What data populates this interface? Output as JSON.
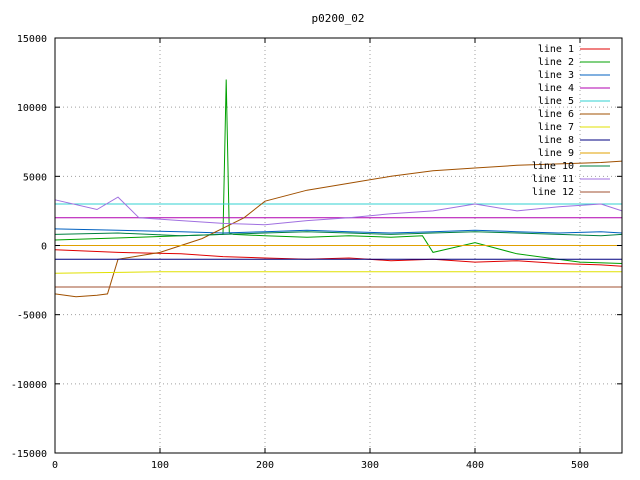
{
  "chart_data": {
    "type": "line",
    "title": "p0200_02",
    "xlabel": "",
    "ylabel": "",
    "xlim": [
      0,
      540
    ],
    "ylim": [
      -15000,
      15000
    ],
    "grid": true,
    "legend_position": "top-right",
    "x_ticks": [
      0,
      100,
      200,
      300,
      400,
      500
    ],
    "y_ticks": [
      -15000,
      -10000,
      -5000,
      0,
      5000,
      10000,
      15000
    ],
    "series": [
      {
        "name": "line 1",
        "color": "#e00000",
        "x": [
          0,
          60,
          120,
          160,
          200,
          240,
          280,
          320,
          360,
          400,
          440,
          480,
          520,
          540
        ],
        "y": [
          -300,
          -500,
          -600,
          -800,
          -900,
          -1000,
          -900,
          -1100,
          -1000,
          -1200,
          -1100,
          -1300,
          -1400,
          -1500
        ]
      },
      {
        "name": "line 2",
        "color": "#00a000",
        "x": [
          0,
          40,
          80,
          120,
          160,
          163,
          166,
          170,
          200,
          240,
          280,
          320,
          350,
          360,
          400,
          440,
          470,
          500,
          540
        ],
        "y": [
          400,
          500,
          600,
          700,
          800,
          12000,
          900,
          800,
          700,
          600,
          700,
          600,
          700,
          -500,
          200,
          -600,
          -900,
          -1200,
          -1300
        ]
      },
      {
        "name": "line 3",
        "color": "#0060c0",
        "x": [
          0,
          60,
          120,
          160,
          200,
          240,
          280,
          320,
          360,
          400,
          440,
          480,
          520,
          540
        ],
        "y": [
          1200,
          1100,
          1000,
          900,
          1000,
          1100,
          1000,
          900,
          1000,
          1100,
          1000,
          900,
          1000,
          900
        ]
      },
      {
        "name": "line 4",
        "color": "#b000b0",
        "x": [
          0,
          100,
          200,
          300,
          400,
          540
        ],
        "y": [
          2000,
          2000,
          2000,
          2000,
          2000,
          2000
        ]
      },
      {
        "name": "line 5",
        "color": "#30d0d0",
        "x": [
          0,
          100,
          200,
          300,
          400,
          540
        ],
        "y": [
          3000,
          3000,
          3000,
          3000,
          3000,
          3000
        ]
      },
      {
        "name": "line 6",
        "color": "#a05000",
        "x": [
          0,
          20,
          40,
          50,
          60,
          100,
          140,
          180,
          200,
          240,
          280,
          320,
          360,
          400,
          440,
          480,
          520,
          540
        ],
        "y": [
          -3500,
          -3700,
          -3600,
          -3500,
          -1000,
          -500,
          500,
          2000,
          3200,
          4000,
          4500,
          5000,
          5400,
          5600,
          5800,
          5900,
          6000,
          6100
        ]
      },
      {
        "name": "line 7",
        "color": "#e0e000",
        "x": [
          0,
          100,
          200,
          300,
          400,
          540
        ],
        "y": [
          -2000,
          -1900,
          -1900,
          -1900,
          -1900,
          -1900
        ]
      },
      {
        "name": "line 8",
        "color": "#000080",
        "x": [
          0,
          100,
          200,
          300,
          400,
          540
        ],
        "y": [
          -1000,
          -1000,
          -1000,
          -1000,
          -1000,
          -1000
        ]
      },
      {
        "name": "line 9",
        "color": "#e0a000",
        "x": [
          0,
          100,
          200,
          300,
          400,
          540
        ],
        "y": [
          0,
          0,
          0,
          0,
          0,
          0
        ]
      },
      {
        "name": "line 10",
        "color": "#008040",
        "x": [
          0,
          60,
          120,
          160,
          200,
          240,
          280,
          320,
          360,
          400,
          440,
          480,
          520,
          540
        ],
        "y": [
          800,
          900,
          700,
          800,
          900,
          1000,
          900,
          800,
          900,
          1000,
          900,
          800,
          700,
          800
        ]
      },
      {
        "name": "line 11",
        "color": "#a070e0",
        "x": [
          0,
          40,
          60,
          80,
          120,
          160,
          200,
          240,
          280,
          320,
          360,
          400,
          440,
          480,
          520,
          540
        ],
        "y": [
          3300,
          2600,
          3500,
          2000,
          1800,
          1600,
          1500,
          1800,
          2000,
          2300,
          2500,
          3000,
          2500,
          2800,
          3000,
          2500
        ]
      },
      {
        "name": "line 12",
        "color": "#a05030",
        "x": [
          0,
          100,
          200,
          300,
          400,
          540
        ],
        "y": [
          -3000,
          -3000,
          -3000,
          -3000,
          -3000,
          -3000
        ]
      }
    ]
  }
}
